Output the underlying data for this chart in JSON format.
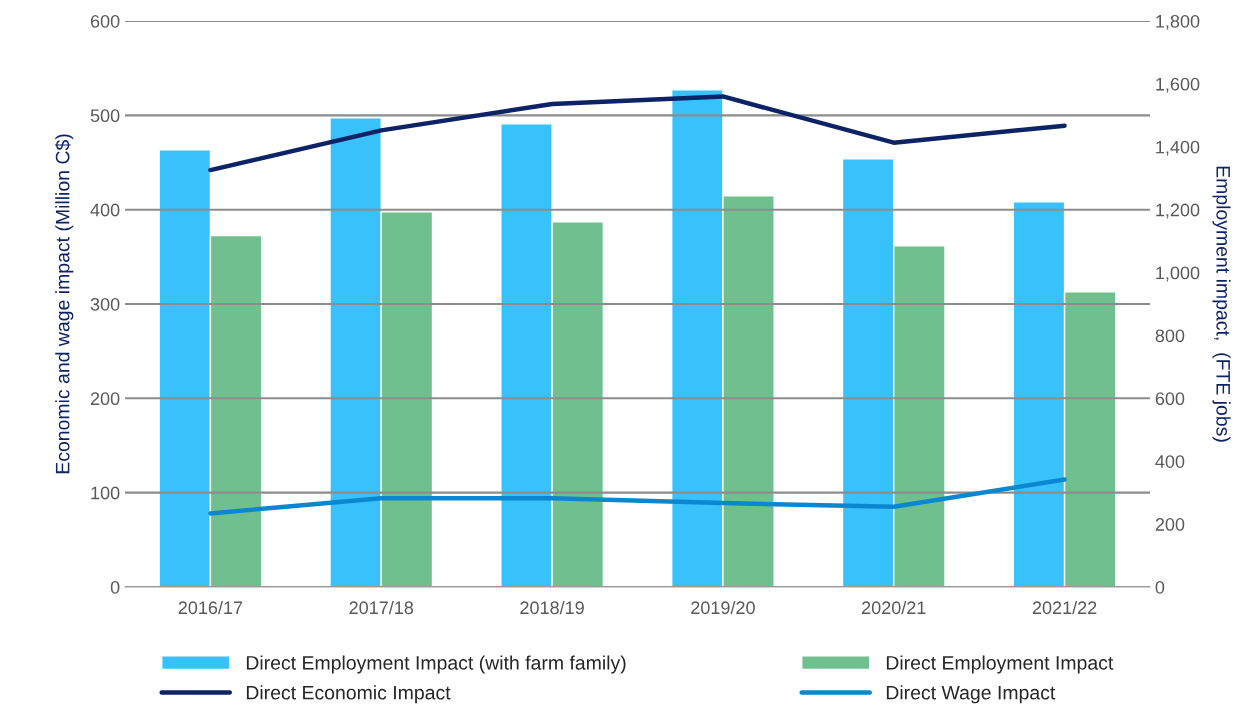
{
  "chart_data": {
    "type": "bar",
    "categories": [
      "2016/17",
      "2017/18",
      "2018/19",
      "2019/20",
      "2020/21",
      "2021/22"
    ],
    "ylabel": "Economic and wage impact (Million C$)",
    "y2label": "Employment impact,  (FTE jobs)",
    "ylim": [
      0,
      600
    ],
    "yticks": [
      0,
      100,
      200,
      300,
      400,
      500,
      600
    ],
    "y2lim": [
      0,
      1800
    ],
    "y2ticks": [
      {
        "value": 0,
        "label": "0"
      },
      {
        "value": 200,
        "label": "200"
      },
      {
        "value": 400,
        "label": "400"
      },
      {
        "value": 600,
        "label": "600"
      },
      {
        "value": 800,
        "label": "800"
      },
      {
        "value": 1000,
        "label": "1,000"
      },
      {
        "value": 1200,
        "label": "1,200"
      },
      {
        "value": 1400,
        "label": "1,400"
      },
      {
        "value": 1600,
        "label": "1,600"
      },
      {
        "value": 1800,
        "label": "1,800"
      }
    ],
    "grid": "y",
    "legend": "bottom",
    "series": [
      {
        "name": "Direct Employment Impact (with farm family)",
        "axis": "y2",
        "color": "#38c1fb",
        "values": [
          1390,
          1492,
          1473,
          1581,
          1362,
          1225
        ]
      },
      {
        "name": "Direct Employment Impact",
        "axis": "y2",
        "color": "#70c08f",
        "values": [
          1118,
          1193,
          1161,
          1244,
          1085,
          939
        ]
      },
      {
        "name": "Direct Economic Impact",
        "type": "line",
        "color": "#0d2366",
        "values": [
          442,
          484,
          512,
          520,
          471,
          489
        ]
      },
      {
        "name": "Direct Wage Impact",
        "type": "line",
        "color": "#0a87d0",
        "values": [
          78,
          94,
          94,
          89,
          85,
          114
        ]
      }
    ]
  }
}
